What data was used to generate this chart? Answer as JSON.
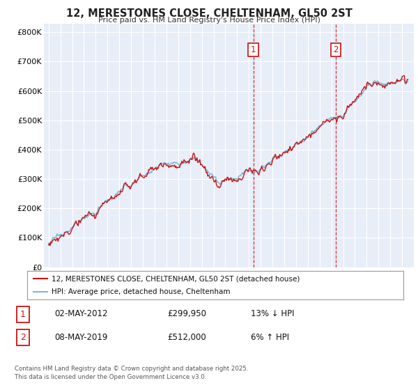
{
  "title": "12, MERESTONES CLOSE, CHELTENHAM, GL50 2ST",
  "subtitle": "Price paid vs. HM Land Registry's House Price Index (HPI)",
  "ylabel_ticks": [
    "£0",
    "£100K",
    "£200K",
    "£300K",
    "£400K",
    "£500K",
    "£600K",
    "£700K",
    "£800K"
  ],
  "ytick_values": [
    0,
    100000,
    200000,
    300000,
    400000,
    500000,
    600000,
    700000,
    800000
  ],
  "ylim": [
    0,
    830000
  ],
  "hpi_color": "#7ab8d9",
  "price_color": "#cc1111",
  "vline_color": "#cc1111",
  "sale1_year": 2012.37,
  "sale2_year": 2019.37,
  "sale1_price": 299950,
  "sale2_price": 512000,
  "legend1": "12, MERESTONES CLOSE, CHELTENHAM, GL50 2ST (detached house)",
  "legend2": "HPI: Average price, detached house, Cheltenham",
  "table_row1_num": "1",
  "table_row1_date": "02-MAY-2012",
  "table_row1_price": "£299,950",
  "table_row1_hpi": "13% ↓ HPI",
  "table_row2_num": "2",
  "table_row2_date": "08-MAY-2019",
  "table_row2_price": "£512,000",
  "table_row2_hpi": "6% ↑ HPI",
  "footnote": "Contains HM Land Registry data © Crown copyright and database right 2025.\nThis data is licensed under the Open Government Licence v3.0.",
  "background_color": "#ffffff",
  "plot_bg_color": "#e8eef8"
}
